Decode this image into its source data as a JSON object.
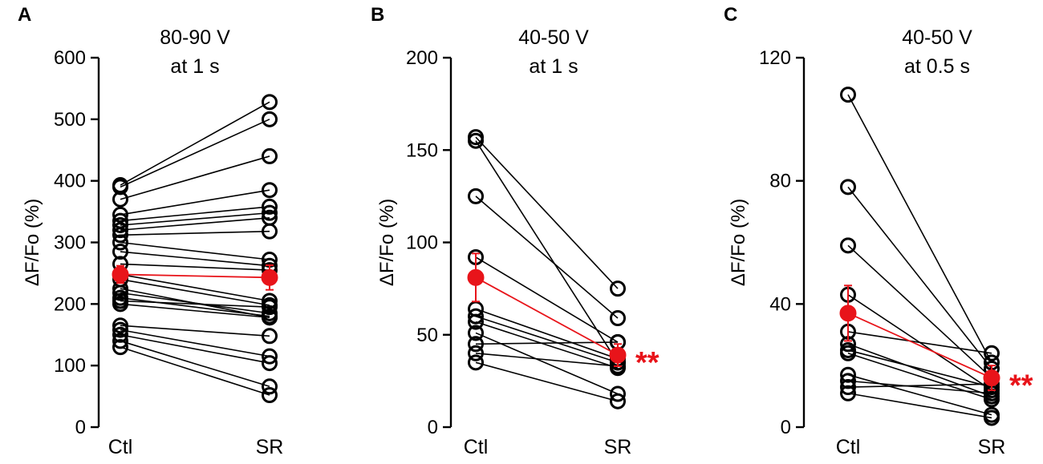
{
  "colors": {
    "individual": "#000000",
    "mean": "#e8141a"
  },
  "chart_data": [
    {
      "type": "scatter",
      "panel_label": "A",
      "title_lines": [
        "80-90 V",
        "at 1 s"
      ],
      "ylabel": "ΔF/Fo (%)",
      "categories": [
        "Ctl",
        "SR"
      ],
      "ylim": [
        0,
        600
      ],
      "yticks": [
        0,
        100,
        200,
        300,
        400,
        500,
        600
      ],
      "yticklabels": [
        "0",
        "100",
        "200",
        "300",
        "400",
        "500",
        "600"
      ],
      "pairs": [
        [
          393,
          528
        ],
        [
          390,
          500
        ],
        [
          370,
          440
        ],
        [
          345,
          385
        ],
        [
          335,
          358
        ],
        [
          328,
          348
        ],
        [
          320,
          340
        ],
        [
          312,
          318
        ],
        [
          300,
          272
        ],
        [
          285,
          262
        ],
        [
          265,
          255
        ],
        [
          248,
          205
        ],
        [
          240,
          198
        ],
        [
          225,
          178
        ],
        [
          218,
          185
        ],
        [
          210,
          180
        ],
        [
          205,
          195
        ],
        [
          200,
          178
        ],
        [
          165,
          148
        ],
        [
          158,
          115
        ],
        [
          150,
          104
        ],
        [
          140,
          66
        ],
        [
          130,
          52
        ]
      ],
      "mean": {
        "values": [
          248,
          243
        ],
        "error": [
          14,
          20
        ]
      },
      "significance": ""
    },
    {
      "type": "scatter",
      "panel_label": "B",
      "title_lines": [
        "40-50 V",
        "at 1 s"
      ],
      "ylabel": "ΔF/Fo (%)",
      "categories": [
        "Ctl",
        "SR"
      ],
      "ylim": [
        0,
        200
      ],
      "yticks": [
        0,
        50,
        100,
        150,
        200
      ],
      "yticklabels": [
        "0",
        "50",
        "100",
        "150",
        "200"
      ],
      "pairs": [
        [
          157,
          75
        ],
        [
          155,
          35
        ],
        [
          125,
          59
        ],
        [
          92,
          46
        ],
        [
          64,
          37
        ],
        [
          60,
          35
        ],
        [
          57,
          32
        ],
        [
          51,
          18
        ],
        [
          45,
          46
        ],
        [
          40,
          33
        ],
        [
          35,
          14
        ]
      ],
      "mean": {
        "values": [
          81,
          39
        ],
        "error": [
          13,
          6
        ]
      },
      "significance": "**"
    },
    {
      "type": "scatter",
      "panel_label": "C",
      "title_lines": [
        "40-50 V",
        "at 0.5 s"
      ],
      "ylabel": "ΔF/Fo (%)",
      "categories": [
        "Ctl",
        "SR"
      ],
      "ylim": [
        0,
        120
      ],
      "yticks": [
        0,
        40,
        80,
        120
      ],
      "yticklabels": [
        "0",
        "40",
        "80",
        "120"
      ],
      "pairs": [
        [
          108,
          21
        ],
        [
          78,
          19
        ],
        [
          59,
          16
        ],
        [
          43,
          12
        ],
        [
          31,
          24
        ],
        [
          27,
          10
        ],
        [
          25,
          13
        ],
        [
          24,
          9
        ],
        [
          17,
          4
        ],
        [
          15,
          11
        ],
        [
          13,
          14
        ],
        [
          11,
          3
        ]
      ],
      "mean": {
        "values": [
          37,
          16
        ],
        "error": [
          9,
          4
        ]
      },
      "significance": "**"
    }
  ]
}
